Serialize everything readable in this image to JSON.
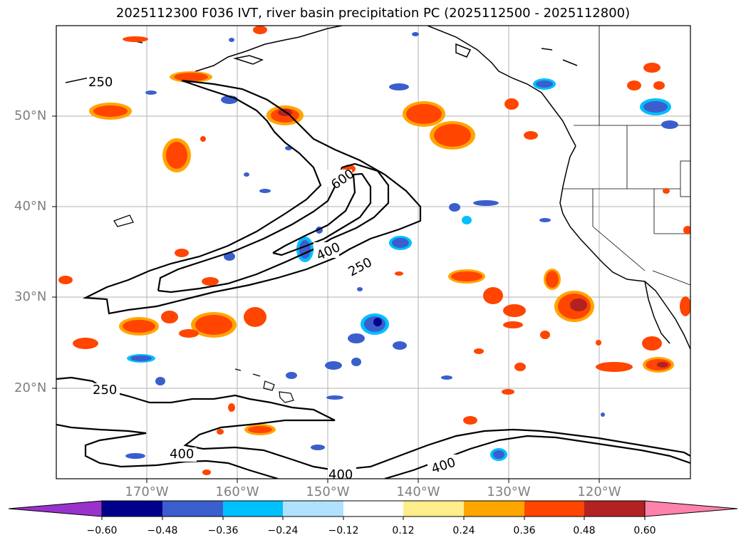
{
  "title": "2025112300 F036 IVT, river basin precipitation PC (2025112500 - 2025112800)",
  "lat_labels": [
    "50°N",
    "40°N",
    "30°N",
    "20°N"
  ],
  "lon_labels": [
    "170°W",
    "160°W",
    "150°W",
    "140°W",
    "130°W",
    "120°W"
  ],
  "ivt_contour_labels": [
    "250",
    "600",
    "400",
    "250",
    "250",
    "400",
    "400",
    "400"
  ],
  "colorbar": {
    "ticks": [
      "−0.60",
      "−0.48",
      "−0.36",
      "−0.24",
      "−0.12",
      "0.12",
      "0.24",
      "0.36",
      "0.48",
      "0.60"
    ],
    "colors": [
      "#9932cc",
      "#00008b",
      "#3a5fcd",
      "#00bfff",
      "#b0e2ff",
      "#ffffff",
      "#ffec8b",
      "#ffa500",
      "#ff4500",
      "#b22222",
      "#ff82ab"
    ]
  },
  "colors": {
    "neg_dark": "#00008b",
    "neg_mid": "#3a5fcd",
    "neg_light": "#00bfff",
    "neg_pale": "#b0e2ff",
    "pos_pale": "#ffec8b",
    "pos_light": "#ffa500",
    "pos_mid": "#ff4500",
    "pos_dark": "#b22222"
  }
}
